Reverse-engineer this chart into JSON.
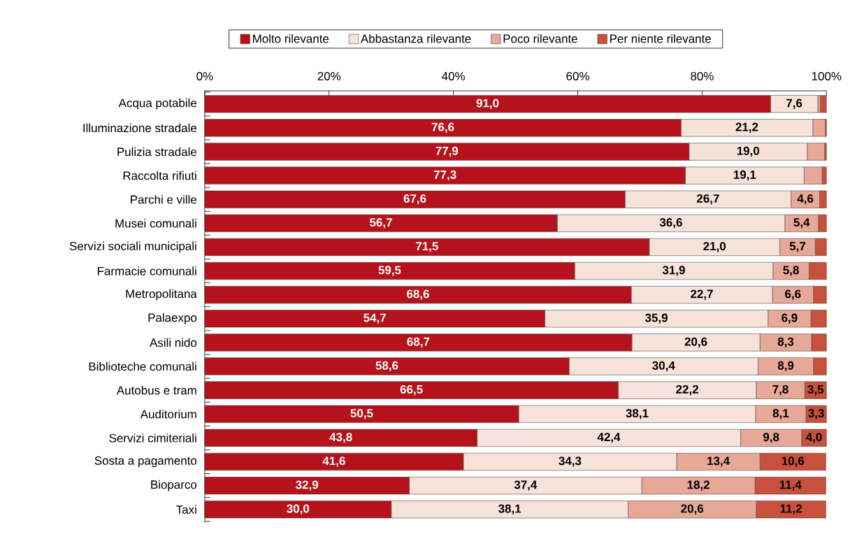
{
  "chart_data": {
    "type": "bar",
    "orientation": "horizontal",
    "stacked": true,
    "legend": "top",
    "categories": [
      "Acqua potabile",
      "Illuminazione stradale",
      "Pulizia stradale",
      "Raccolta rifiuti",
      "Parchi e ville",
      "Musei comunali",
      "Servizi sociali municipali",
      "Farmacie comunali",
      "Metropolitana",
      "Palaexpo",
      "Asili nido",
      "Biblioteche comunali",
      "Autobus e tram",
      "Auditorium",
      "Servizi cimiteriali",
      "Sosta a pagamento",
      "Bioparco",
      "Taxi"
    ],
    "xlim": [
      0,
      100
    ],
    "xticks": [
      {
        "value": 0,
        "label": "0%"
      },
      {
        "value": 20,
        "label": "20%"
      },
      {
        "value": 40,
        "label": "40%"
      },
      {
        "value": 60,
        "label": "60%"
      },
      {
        "value": 80,
        "label": "80%"
      },
      {
        "value": 100,
        "label": "100%"
      }
    ],
    "series": [
      {
        "name": "Molto rilevante",
        "color": "#b5121b",
        "values": [
          91.0,
          76.6,
          77.9,
          77.3,
          67.6,
          56.7,
          71.5,
          59.5,
          68.6,
          54.7,
          68.7,
          58.6,
          66.5,
          50.5,
          43.8,
          41.6,
          32.9,
          30.0
        ],
        "value_labels": [
          "91,0",
          "76,6",
          "77,9",
          "77,3",
          "67,6",
          "56,7",
          "71,5",
          "59,5",
          "68,6",
          "54,7",
          "68,7",
          "58,6",
          "66,5",
          "50,5",
          "43,8",
          "41,6",
          "32,9",
          "30,0"
        ]
      },
      {
        "name": "Abbastanza rilevante",
        "color": "#f7e2da",
        "values": [
          7.6,
          21.2,
          19.0,
          19.1,
          26.7,
          36.6,
          21.0,
          31.9,
          22.7,
          35.9,
          20.6,
          30.4,
          22.2,
          38.1,
          42.4,
          34.3,
          37.4,
          38.1
        ],
        "value_labels": [
          "7,6",
          "21,2",
          "19,0",
          "19,1",
          "26,7",
          "36,6",
          "21,0",
          "31,9",
          "22,7",
          "35,9",
          "20,6",
          "30,4",
          "22,2",
          "38,1",
          "42,4",
          "34,3",
          "37,4",
          "38,1"
        ]
      },
      {
        "name": "Poco rilevante",
        "color": "#e8a898",
        "values": [
          0.4,
          2.0,
          2.8,
          2.9,
          4.6,
          5.4,
          5.7,
          5.8,
          6.6,
          6.9,
          8.3,
          8.9,
          7.8,
          8.1,
          9.8,
          13.4,
          18.2,
          20.6
        ],
        "value_labels": [
          null,
          null,
          null,
          null,
          "4,6",
          "5,4",
          "5,7",
          "5,8",
          "6,6",
          "6,9",
          "8,3",
          "8,9",
          "7,8",
          "8,1",
          "9,8",
          "13,4",
          "18,2",
          "20,6"
        ]
      },
      {
        "name": "Per niente rilevante",
        "color": "#c8503c",
        "values": [
          1.0,
          0.2,
          0.3,
          0.7,
          1.1,
          1.3,
          1.8,
          2.8,
          2.1,
          2.5,
          2.4,
          2.1,
          3.5,
          3.3,
          4.0,
          10.6,
          11.4,
          11.2
        ],
        "value_labels": [
          null,
          null,
          null,
          null,
          null,
          null,
          null,
          null,
          null,
          null,
          null,
          null,
          "3,5",
          "3,3",
          "4,0",
          "10,6",
          "11,4",
          "11,2"
        ]
      }
    ]
  }
}
